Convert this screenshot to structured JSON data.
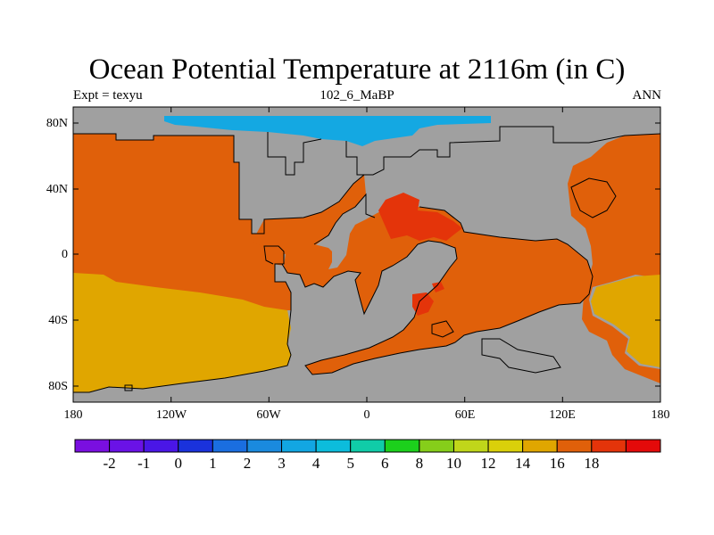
{
  "title": "Ocean Potential Temperature at 2116m (in C)",
  "subtitle_left": "Expt = texyu",
  "subtitle_center": "102_6_MaBP",
  "subtitle_right": "ANN",
  "map": {
    "lat_ticks": [
      "80N",
      "40N",
      "0",
      "40S",
      "80S"
    ],
    "lon_ticks": [
      "180",
      "120W",
      "60W",
      "0",
      "60E",
      "120E",
      "180"
    ],
    "land_color": "#a0a0a0",
    "ocean_regions": [
      {
        "name": "north-pacific",
        "temperature_class": "14-16",
        "color": "#e0600a"
      },
      {
        "name": "south-pacific",
        "temperature_class": "12-14",
        "color": "#e0a600"
      },
      {
        "name": "arctic",
        "temperature_class": "3-4",
        "color": "#14a8e2"
      },
      {
        "name": "tethys",
        "temperature_class": "16-18",
        "color": "#e4340a"
      }
    ]
  },
  "colorbar": {
    "colors": [
      "#7a0fe0",
      "#6a12e6",
      "#4a16e6",
      "#1a32dc",
      "#1a6ee0",
      "#1a8ade",
      "#12a6e2",
      "#0cbcdc",
      "#10cca8",
      "#1cd01c",
      "#86ce1a",
      "#c0d61a",
      "#dad00a",
      "#e0a600",
      "#e0600a",
      "#e4340a",
      "#e40a0a"
    ],
    "labels": [
      "-2",
      "-1",
      "0",
      "1",
      "2",
      "3",
      "4",
      "5",
      "6",
      "8",
      "10",
      "12",
      "14",
      "16",
      "18"
    ]
  }
}
